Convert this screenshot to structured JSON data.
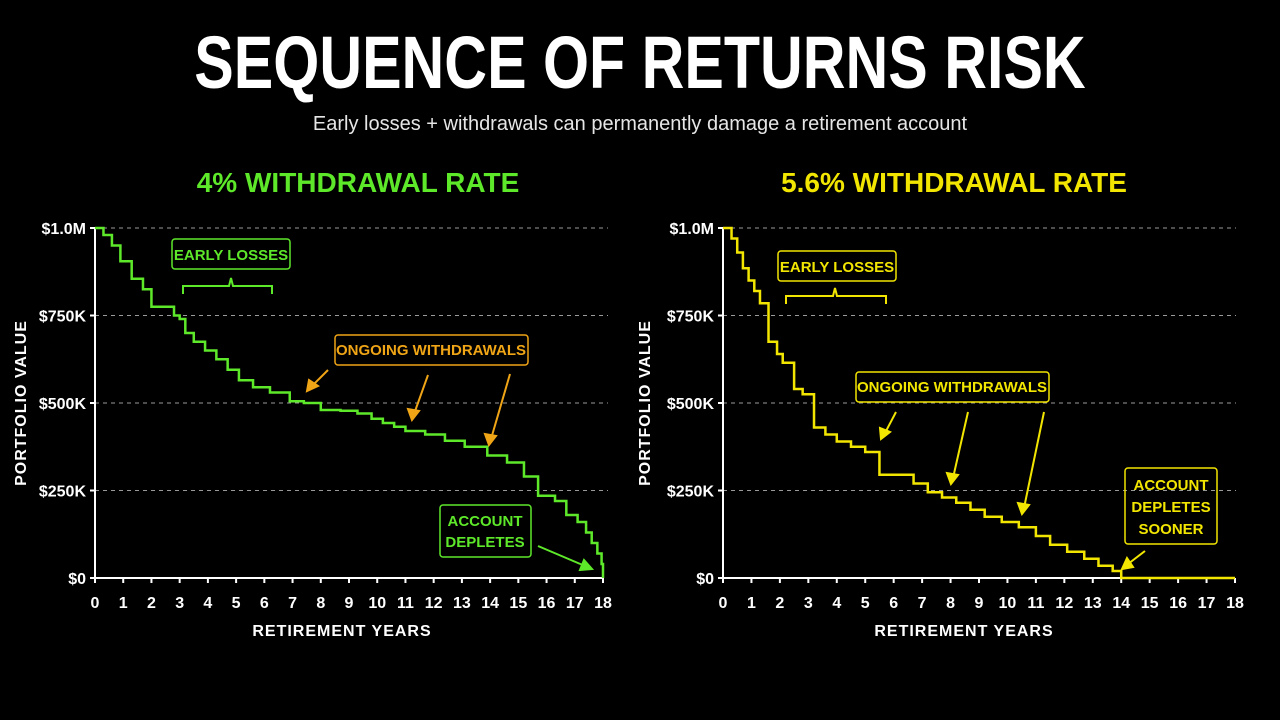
{
  "title": "SEQUENCE OF RETURNS RISK",
  "subtitle": "Early losses + withdrawals can permanently damage a retirement account",
  "colors": {
    "green": "#5ee82a",
    "yellow": "#f2e600",
    "orange": "#f0a516"
  },
  "chart_data": [
    {
      "type": "line",
      "title": "4% WITHDRAWAL RATE",
      "color": "#5ee82a",
      "xlabel": "RETIREMENT YEARS",
      "ylabel": "PORTFOLIO VALUE",
      "xlim": [
        0,
        18
      ],
      "ylim": [
        0,
        1000000
      ],
      "x_ticks": [
        "0",
        "1",
        "2",
        "3",
        "4",
        "5",
        "6",
        "7",
        "8",
        "9",
        "10",
        "11",
        "12",
        "13",
        "14",
        "15",
        "16",
        "17",
        "18"
      ],
      "y_ticks": [
        {
          "value": 0,
          "label": "$0"
        },
        {
          "value": 250000,
          "label": "$250K"
        },
        {
          "value": 500000,
          "label": "$500K"
        },
        {
          "value": 750000,
          "label": "$750K"
        },
        {
          "value": 1000000,
          "label": "$1.0M"
        }
      ],
      "grid": "dashed horizontal",
      "series": [
        {
          "x": [
            0,
            0.3,
            0.6,
            0.9,
            1.3,
            1.7,
            2.0,
            2.4,
            2.8,
            3.0,
            3.2,
            3.5,
            3.9,
            4.3,
            4.7,
            5.1,
            5.6,
            6.2,
            6.9,
            7.4,
            8.0,
            8.7,
            9.3,
            9.8,
            10.2,
            10.6,
            11.0,
            11.7,
            12.4,
            13.1,
            13.9,
            14.6,
            15.2,
            15.7,
            16.3,
            16.7,
            17.1,
            17.4,
            17.6,
            17.8,
            17.95,
            18.0
          ],
          "y": [
            1000000,
            980000,
            950000,
            905000,
            855000,
            825000,
            775000,
            775000,
            750000,
            740000,
            700000,
            675000,
            650000,
            625000,
            595000,
            565000,
            545000,
            530000,
            505000,
            500000,
            480000,
            478000,
            470000,
            455000,
            443000,
            432000,
            420000,
            410000,
            392000,
            375000,
            350000,
            330000,
            290000,
            235000,
            220000,
            180000,
            160000,
            130000,
            100000,
            70000,
            40000,
            0
          ]
        }
      ],
      "annotations": {
        "early_losses": "EARLY LOSSES",
        "ongoing_withdrawals": "ONGOING WITHDRAWALS",
        "depletes_line1": "ACCOUNT",
        "depletes_line2": "DEPLETES"
      }
    },
    {
      "type": "line",
      "title": "5.6% WITHDRAWAL RATE",
      "color": "#f2e600",
      "xlabel": "RETIREMENT YEARS",
      "ylabel": "PORTFOLIO VALUE",
      "xlim": [
        0,
        18
      ],
      "ylim": [
        0,
        1000000
      ],
      "x_ticks": [
        "0",
        "1",
        "2",
        "3",
        "4",
        "5",
        "6",
        "7",
        "8",
        "9",
        "10",
        "11",
        "12",
        "13",
        "14",
        "15",
        "16",
        "17",
        "18"
      ],
      "y_ticks": [
        {
          "value": 0,
          "label": "$0"
        },
        {
          "value": 250000,
          "label": "$250K"
        },
        {
          "value": 500000,
          "label": "$500K"
        },
        {
          "value": 750000,
          "label": "$750K"
        },
        {
          "value": 1000000,
          "label": "$1.0M"
        }
      ],
      "grid": "dashed horizontal",
      "series": [
        {
          "x": [
            0,
            0.3,
            0.5,
            0.7,
            0.9,
            1.1,
            1.3,
            1.6,
            1.9,
            2.1,
            2.5,
            2.8,
            3.2,
            3.6,
            4.0,
            4.5,
            5.0,
            5.5,
            5.9,
            6.7,
            7.2,
            7.7,
            8.2,
            8.7,
            9.2,
            9.8,
            10.4,
            11.0,
            11.5,
            12.1,
            12.7,
            13.2,
            13.7,
            14.0,
            18.0
          ],
          "y": [
            1000000,
            970000,
            930000,
            885000,
            850000,
            820000,
            785000,
            675000,
            640000,
            615000,
            540000,
            525000,
            430000,
            410000,
            390000,
            375000,
            360000,
            295000,
            295000,
            270000,
            245000,
            230000,
            215000,
            195000,
            175000,
            160000,
            145000,
            120000,
            95000,
            75000,
            55000,
            35000,
            20000,
            0,
            0
          ]
        }
      ],
      "annotations": {
        "early_losses": "EARLY LOSSES",
        "ongoing_withdrawals": "ONGOING WITHDRAWALS",
        "depletes_line1": "ACCOUNT",
        "depletes_line2": "DEPLETES",
        "depletes_line3": "SOONER"
      }
    }
  ]
}
